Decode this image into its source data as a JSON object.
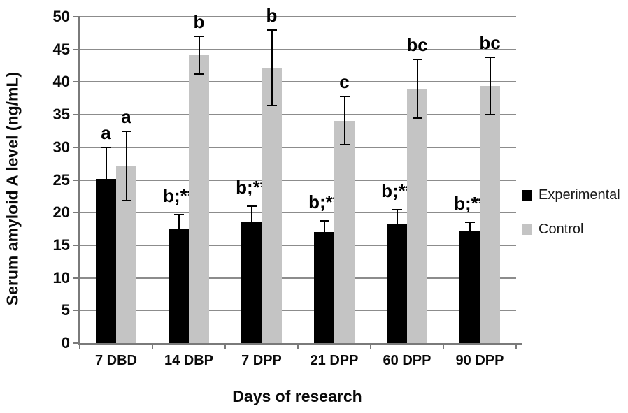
{
  "chart_data": {
    "type": "bar",
    "title": "",
    "xlabel": "Days of research",
    "ylabel": "Serum amyloid A level (ng/mL)",
    "categories": [
      "7 DBD",
      "14 DBP",
      "7 DPP",
      "21 DPP",
      "60 DPP",
      "90 DPP"
    ],
    "series": [
      {
        "name": "Experimental",
        "color": "#000000",
        "values": [
          25.2,
          17.6,
          18.5,
          17.0,
          18.3,
          17.1
        ],
        "errors": [
          4.8,
          2.1,
          2.5,
          1.7,
          2.2,
          1.4
        ],
        "annotations": [
          "a",
          "b;**",
          "b;**",
          "b;**",
          "b;**",
          "b;**"
        ]
      },
      {
        "name": "Control",
        "color": "#c4c4c4",
        "values": [
          27.1,
          44.1,
          42.2,
          34.1,
          39.0,
          39.4
        ],
        "errors": [
          5.3,
          2.9,
          5.8,
          3.7,
          4.5,
          4.4
        ],
        "annotations": [
          "a",
          "b",
          "b",
          "c",
          "bc",
          "bc"
        ]
      }
    ],
    "ylim": [
      0,
      50
    ],
    "ytick_step": 5,
    "grid": true,
    "legend_position": "right"
  },
  "styles": {
    "background": "#ffffff",
    "grid_color": "#8c8c8c",
    "axis_color": "#7a7a7a",
    "error_bar_color": "#000000",
    "text_color": "#0a0a0a"
  }
}
